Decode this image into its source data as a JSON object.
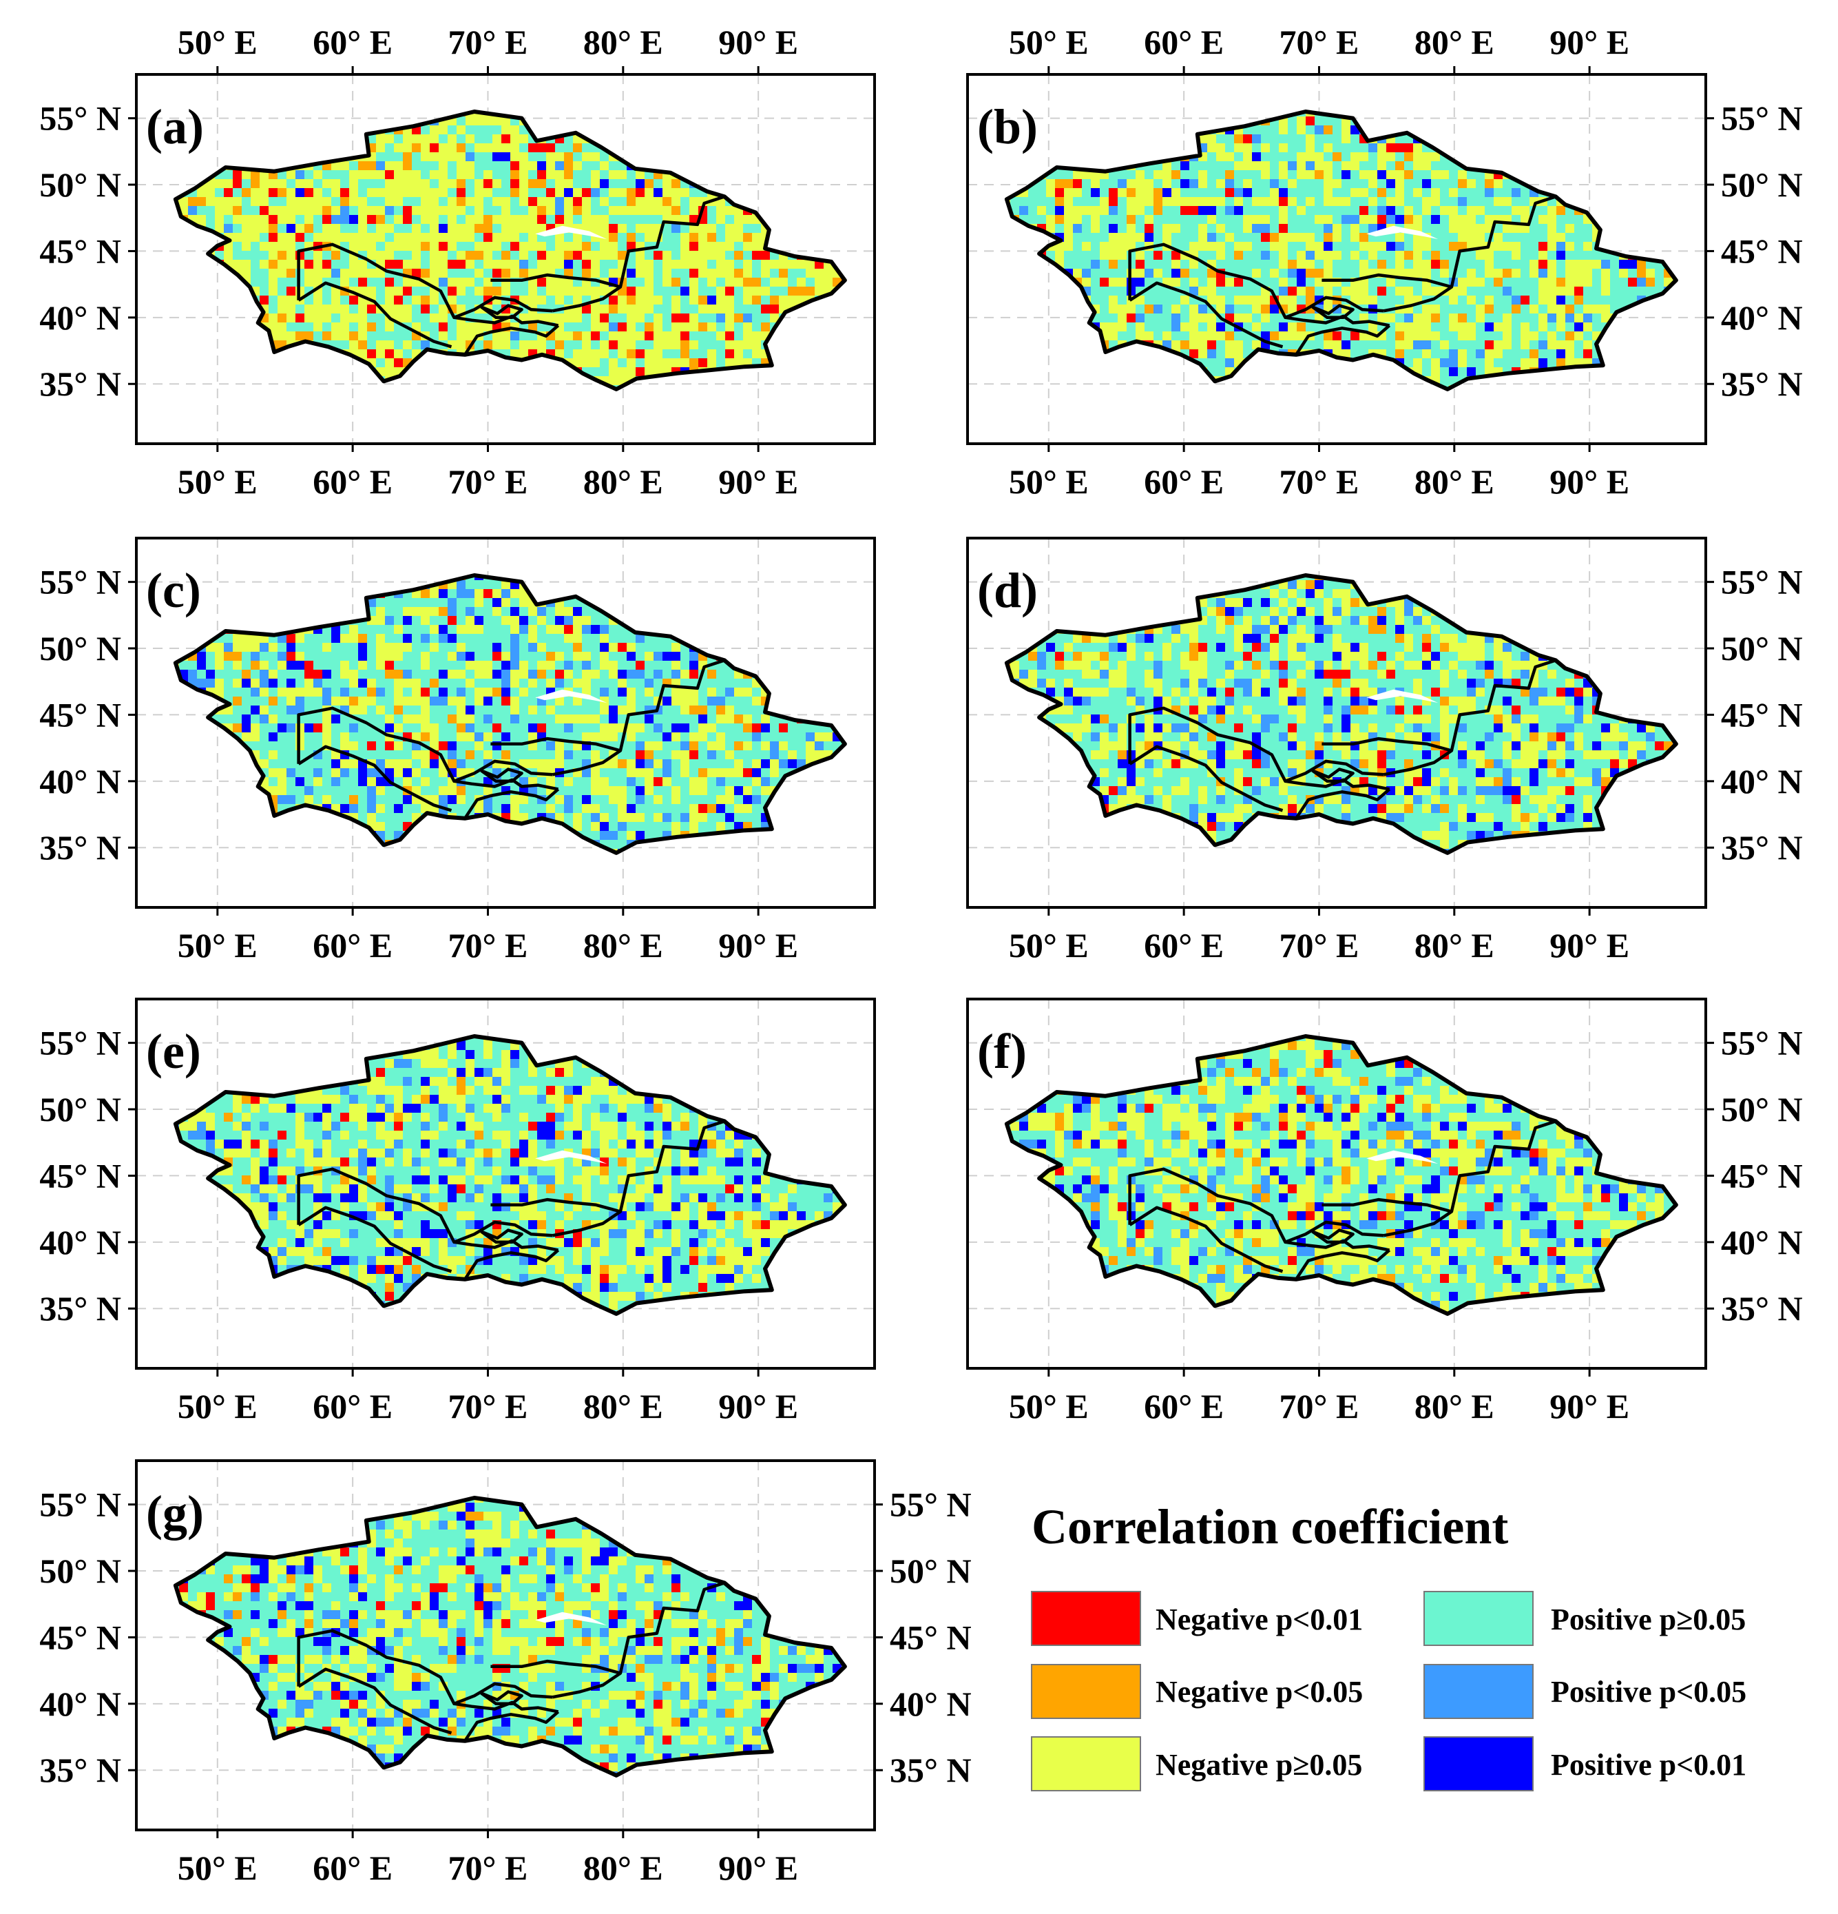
{
  "figure": {
    "legend": {
      "title": "Correlation coefficient",
      "items": [
        {
          "label": "Negative p<0.01",
          "color": "#ff0000"
        },
        {
          "label": "Negative p<0.05",
          "color": "#ffa500"
        },
        {
          "label": "Negative p≥0.05",
          "color": "#e8ff4a"
        },
        {
          "label": "Positive p≥0.05",
          "color": "#6cf5d0"
        },
        {
          "label": "Positive p<0.05",
          "color": "#3d9bff"
        },
        {
          "label": "Positive p<0.01",
          "color": "#0000ff"
        }
      ]
    },
    "lon_ticks": [
      "50° E",
      "60° E",
      "70° E",
      "80° E",
      "90° E"
    ],
    "lat_ticks": [
      "55° N",
      "50° N",
      "45° N",
      "40° N",
      "35° N"
    ],
    "panels": [
      {
        "label": "(a)",
        "mix": {
          "red": 0.07,
          "orange": 0.08,
          "yellow": 0.52,
          "cyan": 0.3,
          "lightblue": 0.02,
          "blue": 0.01
        }
      },
      {
        "label": "(b)",
        "mix": {
          "red": 0.03,
          "orange": 0.04,
          "yellow": 0.38,
          "cyan": 0.45,
          "lightblue": 0.06,
          "blue": 0.04
        }
      },
      {
        "label": "(c)",
        "mix": {
          "red": 0.02,
          "orange": 0.03,
          "yellow": 0.3,
          "cyan": 0.47,
          "lightblue": 0.1,
          "blue": 0.08
        }
      },
      {
        "label": "(d)",
        "mix": {
          "red": 0.03,
          "orange": 0.04,
          "yellow": 0.3,
          "cyan": 0.46,
          "lightblue": 0.1,
          "blue": 0.07
        }
      },
      {
        "label": "(e)",
        "mix": {
          "red": 0.02,
          "orange": 0.03,
          "yellow": 0.35,
          "cyan": 0.45,
          "lightblue": 0.08,
          "blue": 0.07
        }
      },
      {
        "label": "(f)",
        "mix": {
          "red": 0.03,
          "orange": 0.04,
          "yellow": 0.33,
          "cyan": 0.46,
          "lightblue": 0.08,
          "blue": 0.06
        }
      },
      {
        "label": "(g)",
        "mix": {
          "red": 0.03,
          "orange": 0.03,
          "yellow": 0.3,
          "cyan": 0.5,
          "lightblue": 0.08,
          "blue": 0.06
        }
      }
    ]
  }
}
